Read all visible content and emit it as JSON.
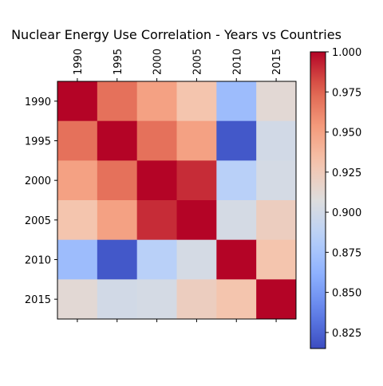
{
  "chart_data": {
    "type": "heatmap",
    "title": "Nuclear Energy Use Correlation - Years vs Countries",
    "xlabel": "",
    "ylabel": "",
    "x_categories": [
      "1990",
      "1995",
      "2000",
      "2005",
      "2010",
      "2015"
    ],
    "y_categories": [
      "1990",
      "1995",
      "2000",
      "2005",
      "2010",
      "2015"
    ],
    "matrix": [
      [
        1.0,
        0.97,
        0.95,
        0.93,
        0.87,
        0.912
      ],
      [
        0.97,
        1.0,
        0.97,
        0.95,
        0.82,
        0.9
      ],
      [
        0.95,
        0.97,
        1.0,
        0.99,
        0.885,
        0.902
      ],
      [
        0.93,
        0.95,
        0.99,
        1.0,
        0.902,
        0.922
      ],
      [
        0.87,
        0.82,
        0.885,
        0.902,
        1.0,
        0.93
      ],
      [
        0.912,
        0.9,
        0.902,
        0.922,
        0.93,
        1.0
      ]
    ],
    "colormap": "coolwarm",
    "value_range": [
      0.815,
      1.0
    ],
    "colorbar": {
      "ticks": [
        "0.825",
        "0.850",
        "0.875",
        "0.900",
        "0.925",
        "0.950",
        "0.975",
        "1.000"
      ],
      "position": "right"
    },
    "x_ticks_position": "top",
    "grid": false,
    "legend": "none"
  }
}
